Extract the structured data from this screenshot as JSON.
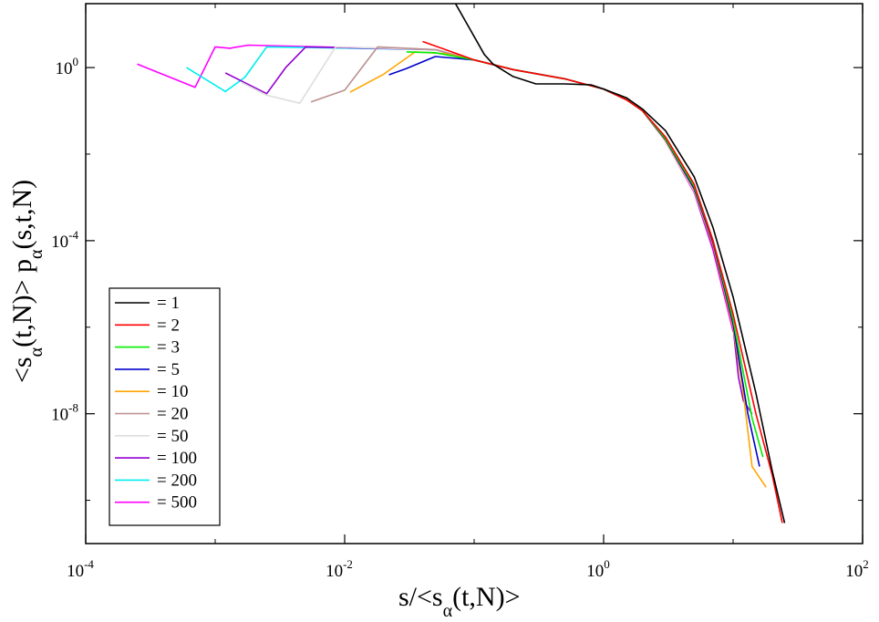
{
  "chart_data": {
    "type": "line",
    "xscale": "log",
    "yscale": "log",
    "xlim": [
      0.0001,
      100
    ],
    "ylim": [
      1e-11,
      30
    ],
    "grid": false,
    "legend_position": "bottom-left",
    "xlabel": {
      "main": "s/<s",
      "sub": "α",
      "tail": "(t,N)>"
    },
    "ylabel": {
      "main": "<s",
      "sub1": "α",
      "mid": "(t,N)> p",
      "sub2": "α",
      "tail": "(s,t,N)"
    },
    "x_ticks": [
      {
        "base": "10",
        "exp": "-4",
        "value": 0.0001
      },
      {
        "base": "10",
        "exp": "-2",
        "value": 0.01
      },
      {
        "base": "10",
        "exp": "0",
        "value": 1
      },
      {
        "base": "10",
        "exp": "2",
        "value": 100
      }
    ],
    "y_ticks": [
      {
        "base": "10",
        "exp": "0",
        "value": 1
      },
      {
        "base": "10",
        "exp": "-4",
        "value": 0.0001
      },
      {
        "base": "10",
        "exp": "-8",
        "value": 1e-08
      }
    ],
    "series": [
      {
        "name": "= 1",
        "color": "#000000",
        "points": [
          [
            0.068,
            40
          ],
          [
            0.12,
            2
          ],
          [
            0.14,
            1.2
          ],
          [
            0.2,
            0.62
          ],
          [
            0.3,
            0.42
          ],
          [
            0.5,
            0.42
          ],
          [
            0.8,
            0.4
          ],
          [
            1,
            0.32
          ],
          [
            1.5,
            0.2
          ],
          [
            2,
            0.11
          ],
          [
            3,
            0.035
          ],
          [
            5,
            0.003
          ],
          [
            7,
            0.0002
          ],
          [
            10,
            5e-06
          ],
          [
            15,
            3e-08
          ],
          [
            20,
            5e-10
          ],
          [
            25,
            3e-11
          ]
        ]
      },
      {
        "name": "= 2",
        "color": "#ff0000",
        "points": [
          [
            0.04,
            4
          ],
          [
            0.06,
            2.6
          ],
          [
            0.1,
            1.5
          ],
          [
            0.2,
            0.9
          ],
          [
            0.5,
            0.55
          ],
          [
            1,
            0.32
          ],
          [
            1.5,
            0.18
          ],
          [
            2,
            0.1
          ],
          [
            3,
            0.025
          ],
          [
            5,
            0.002
          ],
          [
            7,
            0.0001
          ],
          [
            10,
            2e-06
          ],
          [
            15,
            1e-08
          ],
          [
            20,
            4e-10
          ],
          [
            24,
            3e-11
          ]
        ]
      },
      {
        "name": "= 3",
        "color": "#00ee00",
        "points": [
          [
            0.03,
            2.3
          ],
          [
            0.05,
            2.2
          ],
          [
            0.1,
            1.5
          ],
          [
            0.2,
            0.9
          ],
          [
            0.5,
            0.55
          ],
          [
            1,
            0.32
          ],
          [
            1.5,
            0.18
          ],
          [
            2,
            0.1
          ],
          [
            3,
            0.023
          ],
          [
            5,
            0.0018
          ],
          [
            7,
            0.0001
          ],
          [
            10,
            1.5e-06
          ],
          [
            14,
            8e-09
          ],
          [
            17,
            1e-09
          ]
        ]
      },
      {
        "name": "= 5",
        "color": "#0000cc",
        "points": [
          [
            0.022,
            0.68
          ],
          [
            0.03,
            0.95
          ],
          [
            0.05,
            1.8
          ],
          [
            0.1,
            1.5
          ],
          [
            0.2,
            0.9
          ],
          [
            0.5,
            0.55
          ],
          [
            1,
            0.32
          ],
          [
            1.5,
            0.18
          ],
          [
            2,
            0.1
          ],
          [
            3,
            0.022
          ],
          [
            5,
            0.0016
          ],
          [
            7,
            9e-05
          ],
          [
            10,
            1.2e-06
          ],
          [
            13,
            1e-08
          ],
          [
            16,
            6e-10
          ]
        ]
      },
      {
        "name": "= 10",
        "color": "#ffa500",
        "points": [
          [
            0.011,
            0.27
          ],
          [
            0.02,
            0.7
          ],
          [
            0.035,
            2.3
          ],
          [
            0.06,
            2.1
          ],
          [
            0.1,
            1.5
          ],
          [
            0.2,
            0.9
          ],
          [
            0.5,
            0.55
          ],
          [
            1,
            0.32
          ],
          [
            1.5,
            0.18
          ],
          [
            2,
            0.1
          ],
          [
            3,
            0.021
          ],
          [
            5,
            0.0015
          ],
          [
            7,
            8e-05
          ],
          [
            10,
            1e-06
          ],
          [
            12,
            3e-08
          ],
          [
            14,
            6e-10
          ],
          [
            18,
            2e-10
          ]
        ]
      },
      {
        "name": "= 20",
        "color": "#bc8f8f",
        "points": [
          [
            0.0055,
            0.16
          ],
          [
            0.01,
            0.3
          ],
          [
            0.018,
            3
          ],
          [
            0.05,
            2.6
          ],
          [
            0.1,
            1.5
          ],
          [
            0.2,
            0.9
          ],
          [
            0.5,
            0.55
          ],
          [
            1,
            0.32
          ],
          [
            1.5,
            0.18
          ],
          [
            2,
            0.1
          ],
          [
            3,
            0.021
          ],
          [
            5,
            0.0015
          ],
          [
            7,
            8e-05
          ],
          [
            10,
            1e-06
          ]
        ]
      },
      {
        "name": "= 50",
        "color": "#dddddd",
        "points": [
          [
            0.0016,
            0.45
          ],
          [
            0.0025,
            0.23
          ],
          [
            0.0045,
            0.15
          ],
          [
            0.0085,
            3
          ],
          [
            0.05,
            2.6
          ],
          [
            0.1,
            1.5
          ],
          [
            0.2,
            0.9
          ],
          [
            0.5,
            0.55
          ],
          [
            1,
            0.32
          ],
          [
            1.5,
            0.18
          ],
          [
            2,
            0.1
          ],
          [
            3,
            0.02
          ],
          [
            5,
            0.0014
          ],
          [
            7,
            8e-05
          ]
        ]
      },
      {
        "name": "= 100",
        "color": "#9400d3",
        "points": [
          [
            0.0012,
            0.75
          ],
          [
            0.0025,
            0.25
          ],
          [
            0.0035,
            1
          ],
          [
            0.005,
            3
          ],
          [
            0.05,
            2.6
          ],
          [
            0.1,
            1.5
          ],
          [
            0.2,
            0.9
          ],
          [
            0.5,
            0.55
          ],
          [
            1,
            0.32
          ],
          [
            1.5,
            0.18
          ],
          [
            2,
            0.1
          ],
          [
            3,
            0.02
          ],
          [
            5,
            0.0014
          ],
          [
            7,
            7e-05
          ],
          [
            10,
            1e-06
          ],
          [
            11,
            7e-08
          ],
          [
            12,
            2e-08
          ],
          [
            14,
            1e-08
          ]
        ]
      },
      {
        "name": "= 200",
        "color": "#00eeee",
        "points": [
          [
            0.0006,
            1
          ],
          [
            0.0012,
            0.28
          ],
          [
            0.0017,
            0.6
          ],
          [
            0.0025,
            3
          ],
          [
            0.05,
            2.6
          ],
          [
            0.1,
            1.5
          ],
          [
            0.2,
            0.9
          ],
          [
            0.5,
            0.55
          ],
          [
            1,
            0.32
          ],
          [
            1.5,
            0.18
          ],
          [
            2,
            0.1
          ],
          [
            3,
            0.02
          ],
          [
            5,
            0.0014
          ],
          [
            7,
            7e-05
          ]
        ]
      },
      {
        "name": "= 500",
        "color": "#ff00ff",
        "points": [
          [
            0.00025,
            1.2
          ],
          [
            0.0007,
            0.35
          ],
          [
            0.001,
            3
          ],
          [
            0.0013,
            2.8
          ],
          [
            0.0018,
            3.3
          ],
          [
            0.05,
            2.6
          ],
          [
            0.1,
            1.5
          ],
          [
            0.2,
            0.9
          ],
          [
            0.5,
            0.55
          ],
          [
            1,
            0.32
          ],
          [
            1.5,
            0.18
          ],
          [
            2,
            0.1
          ],
          [
            3,
            0.02
          ],
          [
            5,
            0.0013
          ],
          [
            7,
            6e-05
          ],
          [
            10,
            8e-07
          ]
        ]
      }
    ]
  }
}
